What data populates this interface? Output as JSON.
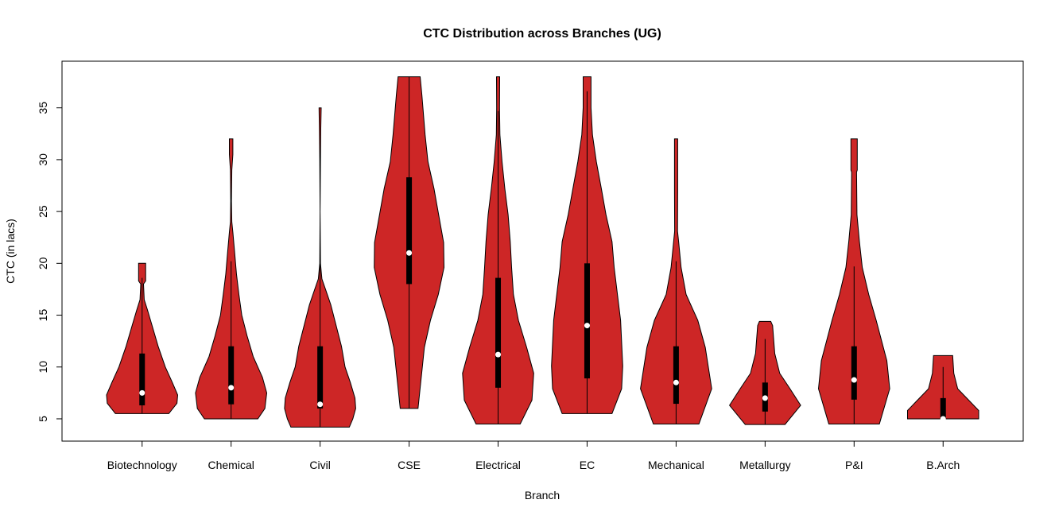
{
  "chart_data": {
    "type": "violin",
    "title": "CTC Distribution across Branches (UG)",
    "xlabel": "Branch",
    "ylabel": "CTC (in lacs)",
    "ylim": [
      2.85,
      39.5
    ],
    "yticks": [
      5,
      10,
      15,
      20,
      25,
      30,
      35
    ],
    "grid": false,
    "fill_color": "#CD2626",
    "box_color": "#000000",
    "median_color": "#FFFFFF",
    "categories": [
      "Biotechnology",
      "Chemical",
      "Civil",
      "CSE",
      "Electrical",
      "EC",
      "Mechanical",
      "Metallurgy",
      "P&I",
      "B.Arch"
    ],
    "series": [
      {
        "category": "Biotechnology",
        "min": 5.5,
        "max": 20,
        "q1": 6.3,
        "median": 7.5,
        "q3": 11.3,
        "whisker_low": 5.5,
        "whisker_high": 18.6,
        "density": [
          [
            5.5,
            0.75
          ],
          [
            6.5,
            0.98
          ],
          [
            7.3,
            1.0
          ],
          [
            8.5,
            0.85
          ],
          [
            10,
            0.65
          ],
          [
            12,
            0.45
          ],
          [
            14,
            0.28
          ],
          [
            15.5,
            0.15
          ],
          [
            16.5,
            0.06
          ],
          [
            18,
            0.04
          ],
          [
            18.3,
            0.1
          ],
          [
            20,
            0.1
          ]
        ]
      },
      {
        "category": "Chemical",
        "min": 5,
        "max": 32,
        "q1": 6.4,
        "median": 8,
        "q3": 12,
        "whisker_low": 5,
        "whisker_high": 20.2,
        "density": [
          [
            5,
            0.75
          ],
          [
            6,
            0.95
          ],
          [
            7.5,
            1.0
          ],
          [
            9,
            0.88
          ],
          [
            11,
            0.62
          ],
          [
            13,
            0.45
          ],
          [
            15,
            0.3
          ],
          [
            17,
            0.22
          ],
          [
            19,
            0.15
          ],
          [
            21,
            0.1
          ],
          [
            23,
            0.05
          ],
          [
            24,
            0.02
          ],
          [
            26,
            0.01
          ],
          [
            29,
            0.02
          ],
          [
            30.5,
            0.05
          ],
          [
            32,
            0.05
          ]
        ]
      },
      {
        "category": "Civil",
        "min": 4.2,
        "max": 35,
        "q1": 6,
        "median": 6.4,
        "q3": 12,
        "whisker_low": 4.2,
        "whisker_high": 21,
        "density": [
          [
            4.2,
            0.82
          ],
          [
            5,
            0.92
          ],
          [
            6,
            1.0
          ],
          [
            7,
            0.98
          ],
          [
            8.5,
            0.85
          ],
          [
            10,
            0.7
          ],
          [
            12,
            0.6
          ],
          [
            14,
            0.45
          ],
          [
            16,
            0.3
          ],
          [
            17.5,
            0.15
          ],
          [
            18.5,
            0.05
          ],
          [
            20,
            0.01
          ],
          [
            25,
            0.0
          ],
          [
            30,
            0.01
          ],
          [
            33,
            0.02
          ],
          [
            35,
            0.03
          ]
        ]
      },
      {
        "category": "CSE",
        "min": 6,
        "max": 38,
        "q1": 18,
        "median": 21,
        "q3": 28.3,
        "whisker_low": 6,
        "whisker_high": 38,
        "density": [
          [
            6,
            0.25
          ],
          [
            11.9,
            0.43
          ],
          [
            14.5,
            0.6
          ],
          [
            17,
            0.82
          ],
          [
            19.6,
            0.98
          ],
          [
            22,
            0.97
          ],
          [
            24.7,
            0.83
          ],
          [
            27.2,
            0.7
          ],
          [
            29.8,
            0.53
          ],
          [
            32.4,
            0.45
          ],
          [
            36.2,
            0.36
          ],
          [
            38,
            0.31
          ]
        ]
      },
      {
        "category": "Electrical",
        "min": 4.5,
        "max": 38,
        "q1": 8,
        "median": 11.2,
        "q3": 18.6,
        "whisker_low": 4.5,
        "whisker_high": 34.7,
        "density": [
          [
            4.5,
            0.62
          ],
          [
            6.8,
            0.95
          ],
          [
            9.4,
            1.0
          ],
          [
            11.9,
            0.8
          ],
          [
            14.5,
            0.57
          ],
          [
            17,
            0.43
          ],
          [
            19.6,
            0.38
          ],
          [
            22.1,
            0.34
          ],
          [
            24.7,
            0.28
          ],
          [
            27.2,
            0.19
          ],
          [
            29.8,
            0.11
          ],
          [
            32.4,
            0.05
          ],
          [
            35,
            0.04
          ],
          [
            38,
            0.045
          ]
        ]
      },
      {
        "category": "EC",
        "min": 5.5,
        "max": 38,
        "q1": 8.9,
        "median": 14,
        "q3": 20,
        "whisker_low": 5.5,
        "whisker_high": 36.6,
        "density": [
          [
            5.5,
            0.7
          ],
          [
            7.9,
            0.97
          ],
          [
            10.1,
            1.0
          ],
          [
            14.5,
            0.94
          ],
          [
            19.6,
            0.76
          ],
          [
            22.1,
            0.7
          ],
          [
            24.7,
            0.53
          ],
          [
            27.2,
            0.4
          ],
          [
            29.8,
            0.26
          ],
          [
            32.4,
            0.15
          ],
          [
            35,
            0.11
          ],
          [
            38,
            0.11
          ]
        ]
      },
      {
        "category": "Mechanical",
        "min": 4.5,
        "max": 32,
        "q1": 6.45,
        "median": 8.5,
        "q3": 12,
        "whisker_low": 4.5,
        "whisker_high": 20.2,
        "density": [
          [
            4.5,
            0.64
          ],
          [
            7.9,
            1.0
          ],
          [
            11.9,
            0.82
          ],
          [
            14.5,
            0.61
          ],
          [
            17,
            0.28
          ],
          [
            19.6,
            0.14
          ],
          [
            22.1,
            0.07
          ],
          [
            23.1,
            0.04
          ],
          [
            27,
            0.045
          ],
          [
            32,
            0.045
          ]
        ]
      },
      {
        "category": "Metallurgy",
        "min": 4.45,
        "max": 14.4,
        "q1": 5.7,
        "median": 7,
        "q3": 8.5,
        "whisker_low": 4.45,
        "whisker_high": 12.7,
        "density": [
          [
            4.45,
            0.56
          ],
          [
            6.3,
            1.0
          ],
          [
            7.9,
            0.7
          ],
          [
            9.4,
            0.41
          ],
          [
            11.3,
            0.27
          ],
          [
            14,
            0.21
          ],
          [
            14.4,
            0.16
          ]
        ]
      },
      {
        "category": "P&I",
        "min": 4.5,
        "max": 32,
        "q1": 6.85,
        "median": 8.75,
        "q3": 12,
        "whisker_low": 4.5,
        "whisker_high": 19.7,
        "density": [
          [
            4.5,
            0.71
          ],
          [
            7.9,
            1.0
          ],
          [
            10.6,
            0.92
          ],
          [
            14.5,
            0.62
          ],
          [
            17,
            0.41
          ],
          [
            19.6,
            0.23
          ],
          [
            22.1,
            0.15
          ],
          [
            24.7,
            0.08
          ],
          [
            28.8,
            0.07
          ],
          [
            29,
            0.09
          ],
          [
            32,
            0.09
          ]
        ]
      },
      {
        "category": "B.Arch",
        "min": 5,
        "max": 11.1,
        "q1": 5,
        "median": 5,
        "q3": 7,
        "whisker_low": 5,
        "whisker_high": 10,
        "density": [
          [
            5,
            1.0
          ],
          [
            5.8,
            1.0
          ],
          [
            6.8,
            0.72
          ],
          [
            7.9,
            0.41
          ],
          [
            9.4,
            0.3
          ],
          [
            11.1,
            0.27
          ]
        ]
      }
    ]
  }
}
